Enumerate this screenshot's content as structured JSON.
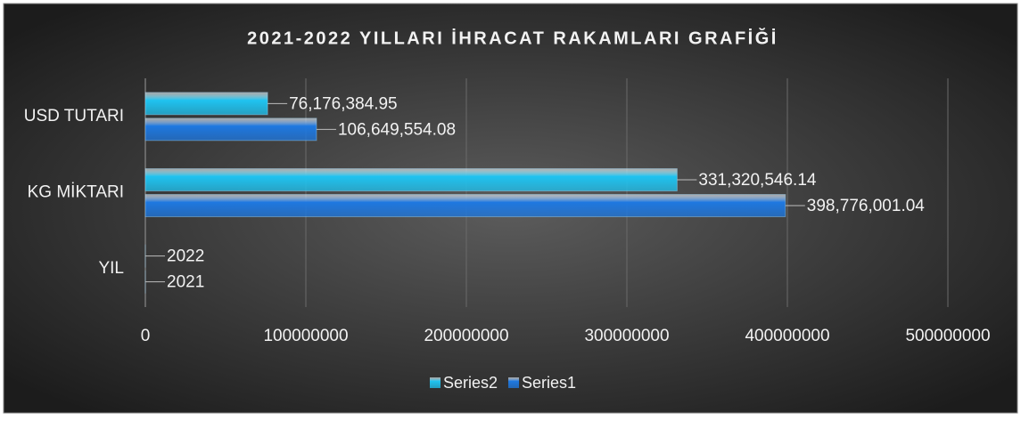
{
  "chart_data": {
    "type": "bar",
    "orientation": "horizontal",
    "title": "2021-2022 YILLARI İHRACAT RAKAMLARI GRAFİĞİ",
    "categories": [
      "YIL",
      "KG MİKTARI",
      "USD TUTARI"
    ],
    "series": [
      {
        "name": "Series2",
        "color": "#1fc3f0",
        "values": [
          2022,
          331320546.14,
          76176384.95
        ],
        "value_labels": [
          "2022",
          "331,320,546.14",
          "76,176,384.95"
        ]
      },
      {
        "name": "Series1",
        "color": "#1e78e0",
        "values": [
          2021,
          398776001.04,
          106649554.08
        ],
        "value_labels": [
          "2021",
          "398,776,001.04",
          "106,649,554.08"
        ]
      }
    ],
    "xlim": [
      0,
      500000000
    ],
    "xticks": [
      0,
      100000000,
      200000000,
      300000000,
      400000000,
      500000000
    ],
    "grid": true,
    "legend": "bottom"
  }
}
